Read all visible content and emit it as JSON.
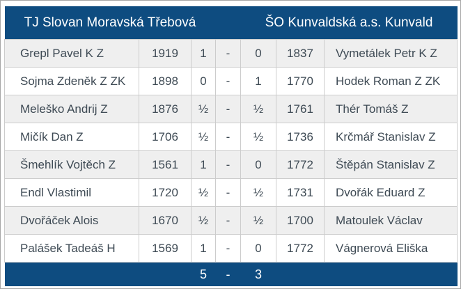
{
  "header": {
    "home_team": "TJ Slovan Moravská Třebová",
    "away_team": "ŠO Kunvaldská a.s. Kunvald"
  },
  "rows": [
    {
      "home_player": "Grepl Pavel K Z",
      "home_rating": "1919",
      "home_score": "1",
      "sep": "-",
      "away_score": "0",
      "away_rating": "1837",
      "away_player": "Vymetálek Petr K Z"
    },
    {
      "home_player": "Sojma Zdeněk Z ZK",
      "home_rating": "1898",
      "home_score": "0",
      "sep": "-",
      "away_score": "1",
      "away_rating": "1770",
      "away_player": "Hodek Roman Z ZK"
    },
    {
      "home_player": "Meleško Andrij Z",
      "home_rating": "1876",
      "home_score": "½",
      "sep": "-",
      "away_score": "½",
      "away_rating": "1761",
      "away_player": "Thér Tomáš Z"
    },
    {
      "home_player": "Mičík Dan Z",
      "home_rating": "1706",
      "home_score": "½",
      "sep": "-",
      "away_score": "½",
      "away_rating": "1736",
      "away_player": "Krčmář Stanislav Z"
    },
    {
      "home_player": "Šmehlík Vojtěch Z",
      "home_rating": "1561",
      "home_score": "1",
      "sep": "-",
      "away_score": "0",
      "away_rating": "1772",
      "away_player": "Štěpán Stanislav Z"
    },
    {
      "home_player": "Endl Vlastimil",
      "home_rating": "1720",
      "home_score": "½",
      "sep": "-",
      "away_score": "½",
      "away_rating": "1731",
      "away_player": "Dvořák Eduard Z"
    },
    {
      "home_player": "Dvořáček Alois",
      "home_rating": "1670",
      "home_score": "½",
      "sep": "-",
      "away_score": "½",
      "away_rating": "1700",
      "away_player": "Matoulek Václav"
    },
    {
      "home_player": "Palášek Tadeáš H",
      "home_rating": "1569",
      "home_score": "1",
      "sep": "-",
      "away_score": "0",
      "away_rating": "1772",
      "away_player": "Vágnerová Eliška"
    }
  ],
  "footer": {
    "home_total": "5",
    "sep": "-",
    "away_total": "3"
  },
  "colors": {
    "band_bg": "#0e4c80",
    "band_text": "#ffffff",
    "row_alt_bg": "#efefef",
    "grid": "#cccccc",
    "body_text": "#3e4a54"
  }
}
